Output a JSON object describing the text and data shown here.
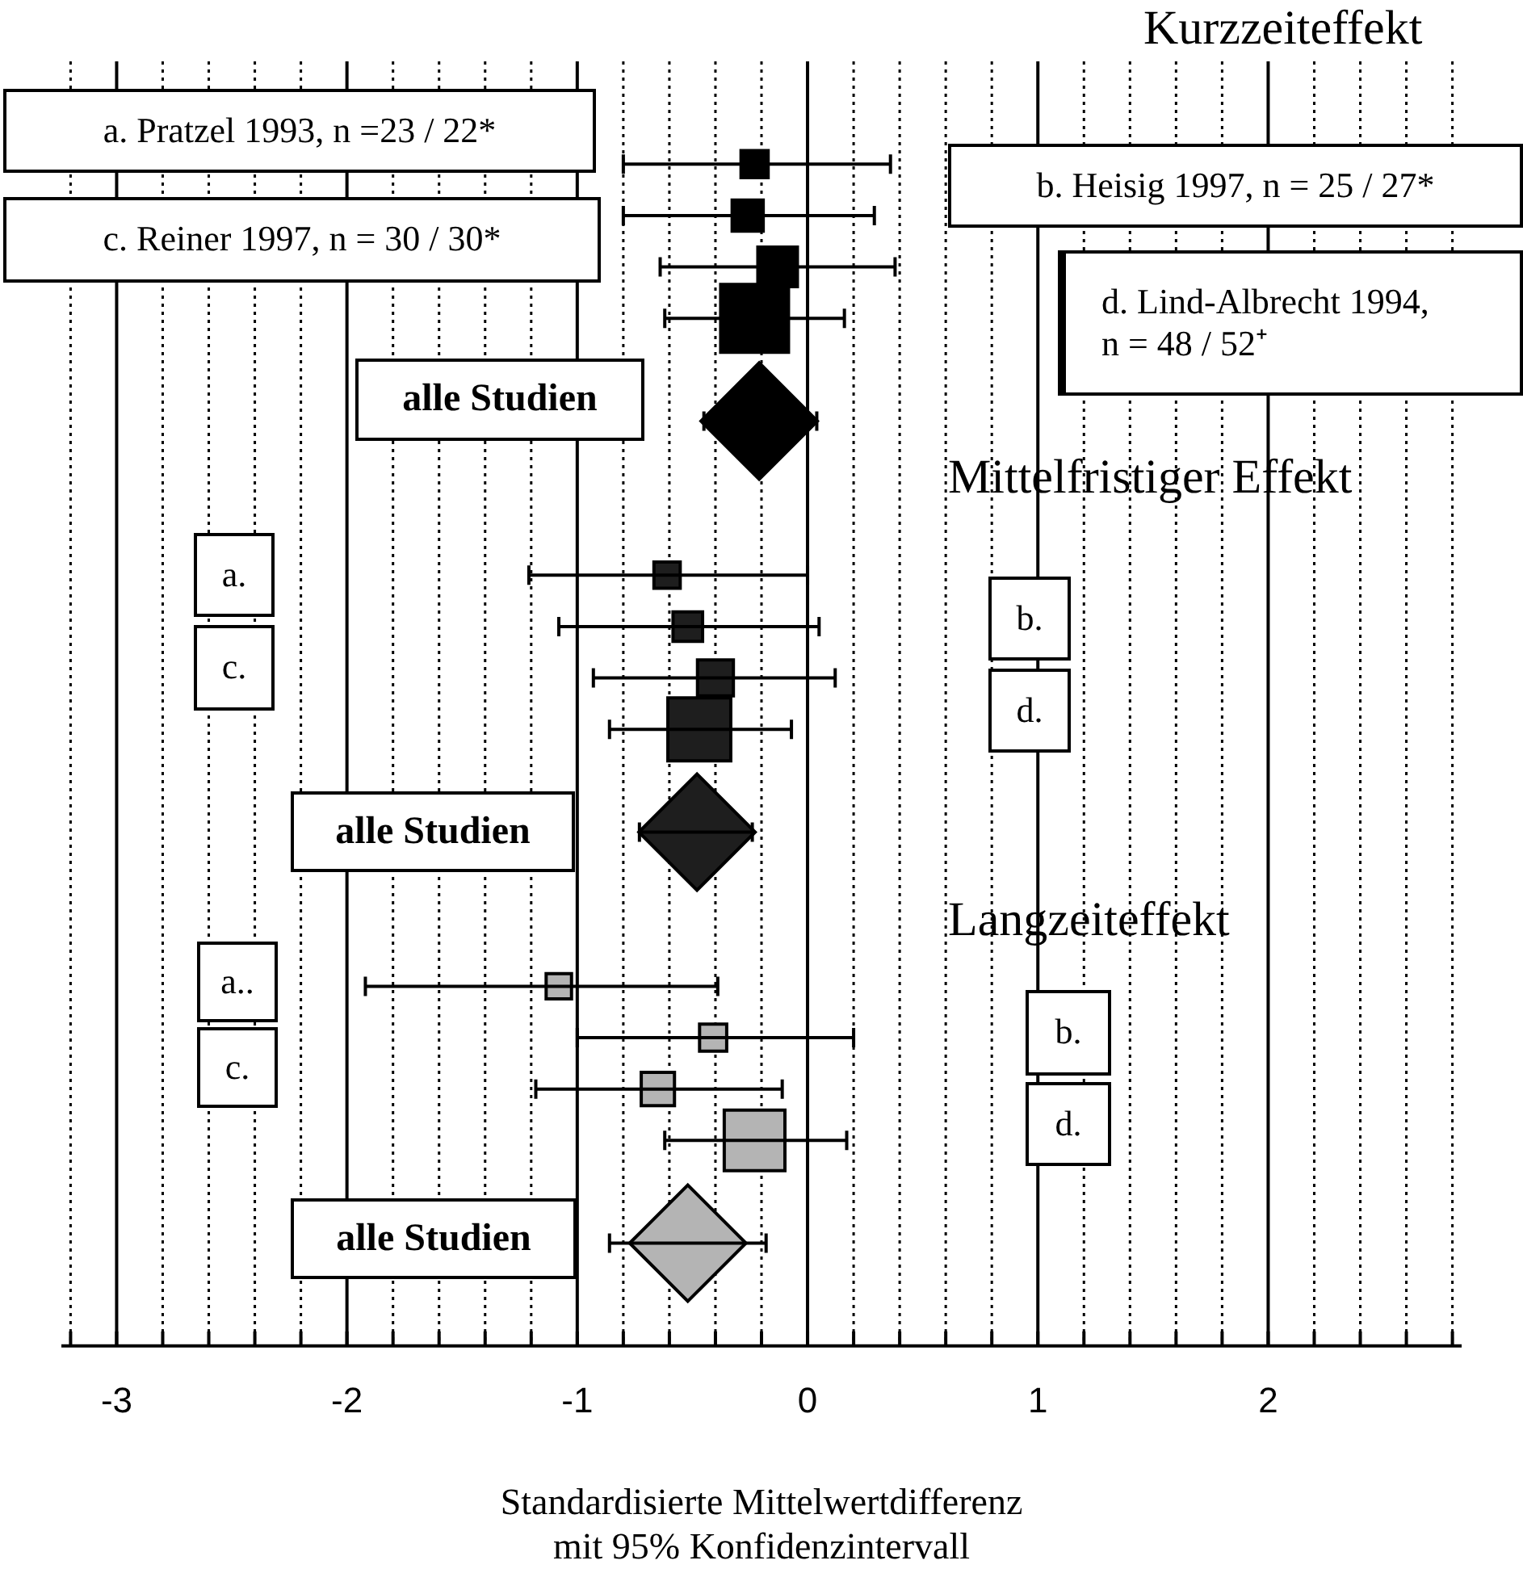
{
  "chart_data": {
    "type": "scatter",
    "orientation": "horizontal",
    "xlabel": "Standardisierte Mittelwertdifferenz\nmit 95% Konfidenzintervall",
    "categories": [
      null,
      null,
      null,
      null,
      null,
      null,
      null,
      null,
      null,
      null,
      null,
      null,
      null,
      null,
      null,
      null,
      null,
      null,
      null,
      null,
      null,
      null,
      null,
      null,
      null,
      null
    ],
    "xlim": [
      -3.24,
      2.84
    ],
    "xticks": [
      {
        "value": -3.2,
        "label": null
      },
      -3,
      {
        "value": -2.8,
        "label": null
      },
      {
        "value": -2.6,
        "label": null
      },
      {
        "value": -2.4,
        "label": null
      },
      {
        "value": -2.2,
        "label": null
      },
      -2,
      {
        "value": -1.8,
        "label": null
      },
      {
        "value": -1.6,
        "label": null
      },
      {
        "value": -1.4,
        "label": null
      },
      {
        "value": -1.2,
        "label": null
      },
      -1,
      {
        "value": -0.8,
        "label": null
      },
      {
        "value": -0.6,
        "label": null
      },
      {
        "value": -0.4,
        "label": null
      },
      {
        "value": -0.2,
        "label": null
      },
      0,
      {
        "value": 0.2,
        "label": null
      },
      {
        "value": 0.4,
        "label": null
      },
      {
        "value": 0.6,
        "label": null
      },
      {
        "value": 0.8,
        "label": null
      },
      1,
      {
        "value": 1.2,
        "label": null
      },
      {
        "value": 1.4,
        "label": null
      },
      {
        "value": 1.6,
        "label": null
      },
      {
        "value": 1.8,
        "label": null
      },
      2,
      {
        "value": 2.2,
        "label": null
      },
      {
        "value": 2.4,
        "label": null
      },
      {
        "value": 2.6,
        "label": null
      },
      {
        "value": 2.8,
        "label": null
      }
    ],
    "grid": "x",
    "legend": false,
    "series": [
      {
        "type": "bubble",
        "marker": "square",
        "color": "#000000",
        "values": [
          null,
          null,
          -0.23,
          -0.26,
          -0.13,
          -0.23,
          null,
          null,
          null,
          null,
          null,
          null,
          null,
          null,
          null,
          null,
          null,
          null,
          null,
          null,
          null,
          null,
          null,
          null,
          null,
          null
        ],
        "errors": [
          null,
          null,
          [
            -0.8,
            0.36
          ],
          [
            -0.8,
            0.29
          ],
          [
            -0.64,
            0.38
          ],
          [
            -0.62,
            0.16
          ],
          null,
          null,
          null,
          null,
          null,
          null,
          null,
          null,
          null,
          null,
          null,
          null,
          null,
          null,
          null,
          null,
          null,
          null,
          null,
          null
        ],
        "sizes": [
          null,
          null,
          0.16,
          0.21,
          0.34,
          1,
          null,
          null,
          null,
          null,
          null,
          null,
          null,
          null,
          null,
          null,
          null,
          null,
          null,
          null,
          null,
          null,
          null,
          null,
          null,
          null
        ]
      },
      {
        "type": "scatter",
        "marker": "diamond",
        "color": "#000000",
        "values": [
          null,
          null,
          null,
          null,
          null,
          null,
          null,
          -0.21,
          null,
          null,
          null,
          null,
          null,
          null,
          null,
          null,
          null,
          null,
          null,
          null,
          null,
          null,
          null,
          null,
          null,
          null
        ],
        "errors": [
          null,
          null,
          null,
          null,
          null,
          null,
          null,
          [
            -0.45,
            0.04
          ],
          null,
          null,
          null,
          null,
          null,
          null,
          null,
          null,
          null,
          null,
          null,
          null,
          null,
          null,
          null,
          null,
          null,
          null
        ]
      },
      {
        "type": "bubble",
        "marker": "square",
        "color": "#1e1e1e",
        "values": [
          null,
          null,
          null,
          null,
          null,
          null,
          null,
          null,
          null,
          null,
          -0.61,
          -0.52,
          -0.4,
          -0.47,
          null,
          null,
          null,
          null,
          null,
          null,
          null,
          null,
          null,
          null,
          null,
          null
        ],
        "errors": [
          null,
          null,
          null,
          null,
          null,
          null,
          null,
          null,
          null,
          null,
          [
            -1.21,
            0.0
          ],
          [
            -1.08,
            0.05
          ],
          [
            -0.93,
            0.12
          ],
          [
            -0.86,
            -0.07
          ],
          null,
          null,
          null,
          null,
          null,
          null,
          null,
          null,
          null,
          null,
          null,
          null
        ],
        "sizes": [
          null,
          null,
          null,
          null,
          null,
          null,
          null,
          null,
          null,
          null,
          0.15,
          0.19,
          0.28,
          0.86,
          null,
          null,
          null,
          null,
          null,
          null,
          null,
          null,
          null,
          null,
          null,
          null
        ]
      },
      {
        "type": "scatter",
        "marker": "diamond",
        "color": "#1e1e1e",
        "values": [
          null,
          null,
          null,
          null,
          null,
          null,
          null,
          null,
          null,
          null,
          null,
          null,
          null,
          null,
          null,
          -0.48,
          null,
          null,
          null,
          null,
          null,
          null,
          null,
          null,
          null,
          null
        ],
        "errors": [
          null,
          null,
          null,
          null,
          null,
          null,
          null,
          null,
          null,
          null,
          null,
          null,
          null,
          null,
          null,
          [
            -0.73,
            -0.24
          ],
          null,
          null,
          null,
          null,
          null,
          null,
          null,
          null,
          null,
          null
        ]
      },
      {
        "type": "bubble",
        "marker": "square",
        "color": "#b4b4b4",
        "values": [
          null,
          null,
          null,
          null,
          null,
          null,
          null,
          null,
          null,
          null,
          null,
          null,
          null,
          null,
          null,
          null,
          null,
          null,
          -1.08,
          -0.41,
          -0.65,
          -0.23,
          null,
          null,
          null,
          null
        ],
        "errors": [
          null,
          null,
          null,
          null,
          null,
          null,
          null,
          null,
          null,
          null,
          null,
          null,
          null,
          null,
          null,
          null,
          null,
          null,
          [
            -1.92,
            -0.39
          ],
          [
            -1.0,
            0.2
          ],
          [
            -1.18,
            -0.11
          ],
          [
            -0.62,
            0.17
          ],
          null,
          null,
          null,
          null
        ],
        "sizes": [
          null,
          null,
          null,
          null,
          null,
          null,
          null,
          null,
          null,
          null,
          null,
          null,
          null,
          null,
          null,
          null,
          null,
          null,
          0.14,
          0.16,
          0.24,
          0.8,
          null,
          null,
          null,
          null
        ]
      },
      {
        "type": "scatter",
        "marker": "diamond",
        "color": "#b4b4b4",
        "values": [
          null,
          null,
          null,
          null,
          null,
          null,
          null,
          null,
          null,
          null,
          null,
          null,
          null,
          null,
          null,
          null,
          null,
          null,
          null,
          null,
          null,
          null,
          null,
          -0.52,
          null,
          null
        ],
        "errors": [
          null,
          null,
          null,
          null,
          null,
          null,
          null,
          null,
          null,
          null,
          null,
          null,
          null,
          null,
          null,
          null,
          null,
          null,
          null,
          null,
          null,
          null,
          null,
          [
            -0.86,
            -0.18
          ],
          null,
          null
        ]
      }
    ],
    "annotations": [
      "Kurzzeiteffekt",
      "a. Pratzel 1993, n =23 / 22*",
      "b. Heisig 1997, n = 25 / 27*",
      "c. Reiner 1997, n = 30 / 30*",
      "d. Lind-Albrecht 1994,\nn = 48 / 52⁺",
      "alle Studien",
      "Mittelfristiger Effekt",
      "a.",
      "b.",
      "c.",
      "d.",
      "alle Studien",
      "Langzeiteffekt",
      "a..",
      "b.",
      "c.",
      "d.",
      "alle Studien"
    ]
  }
}
